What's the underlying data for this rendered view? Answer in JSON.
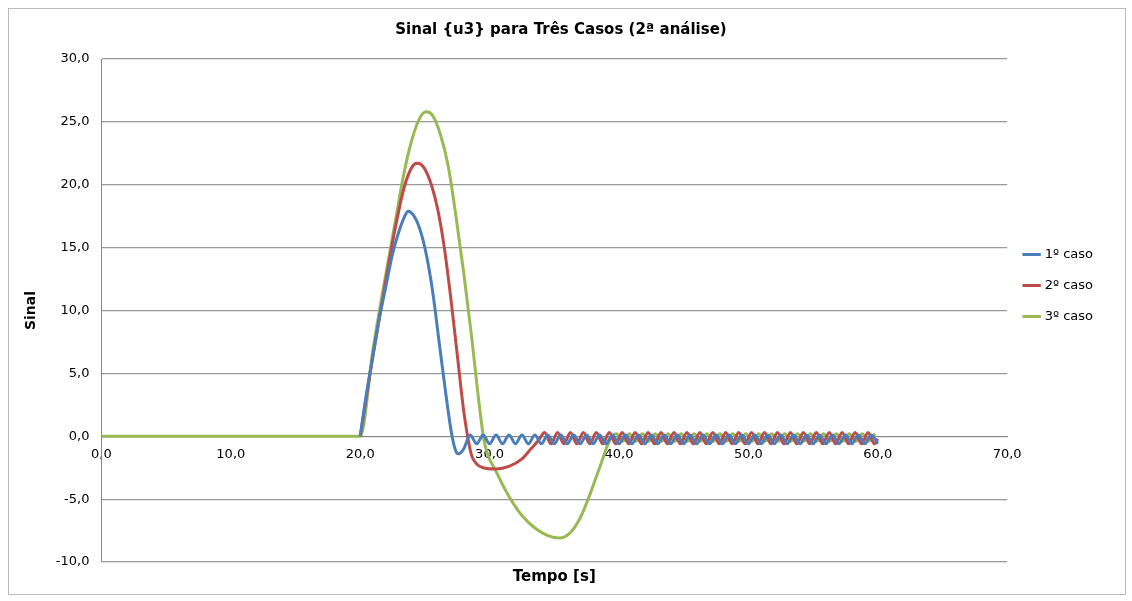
{
  "chart_data": {
    "type": "line",
    "title": "Sinal {u3} para Três Casos (2ª análise)",
    "xlabel": "Tempo [s]",
    "ylabel": "Sinal",
    "xlim": [
      0,
      70
    ],
    "xticks": [
      {
        "value": 0,
        "label": "0,0"
      },
      {
        "value": 10,
        "label": "10,0"
      },
      {
        "value": 20,
        "label": "20,0"
      },
      {
        "value": 30,
        "label": "30,0"
      },
      {
        "value": 40,
        "label": "40,0"
      },
      {
        "value": 50,
        "label": "50,0"
      },
      {
        "value": 60,
        "label": "60,0"
      },
      {
        "value": 70,
        "label": "70,0"
      }
    ],
    "ylim": [
      -10,
      30
    ],
    "yticks": [
      {
        "value": -10,
        "label": "-10,0"
      },
      {
        "value": -5,
        "label": "-5,0"
      },
      {
        "value": 0,
        "label": "0,0"
      },
      {
        "value": 5,
        "label": "5,0"
      },
      {
        "value": 10,
        "label": "10,0"
      },
      {
        "value": 15,
        "label": "15,0"
      },
      {
        "value": 20,
        "label": "20,0"
      },
      {
        "value": 25,
        "label": "25,0"
      },
      {
        "value": 30,
        "label": "30,0"
      }
    ],
    "grid": "y",
    "legend": "right",
    "marker": "none",
    "line_style": "solid",
    "series": [
      {
        "name": "1º caso",
        "color": "#4a7ebb",
        "x": [
          20,
          20.5,
          21,
          21.5,
          22,
          22.5,
          23,
          23.4,
          23.7,
          24.1,
          24.6,
          25.1,
          25.6,
          26.1,
          26.6,
          27.1,
          27.4,
          27.6,
          28,
          28.5,
          29,
          29.5,
          30,
          30.5,
          31,
          31.5,
          32,
          32.5,
          33,
          33.5,
          34,
          34.5,
          35,
          35.5,
          36,
          36.5,
          37,
          37.5,
          38,
          38.5,
          39,
          39.5,
          40,
          40.5,
          41,
          41.5,
          42,
          42.5,
          43,
          43.5,
          44,
          44.5,
          45,
          45.5,
          46,
          46.5,
          47,
          47.5,
          48,
          48.5,
          49,
          49.5,
          50,
          50.5,
          51,
          51.5,
          52,
          52.5,
          53,
          53.5,
          54,
          54.5,
          55,
          55.5,
          56,
          56.5,
          57,
          57.5,
          58,
          58.5,
          59,
          59.5,
          60
        ],
        "values": [
          0,
          3.5,
          6.5,
          9.5,
          12,
          14.5,
          16.3,
          17.4,
          17.9,
          17.6,
          16.5,
          14.5,
          11.5,
          7.5,
          3.5,
          0,
          -1.2,
          -1.4,
          -1,
          0.1,
          -0.6,
          0.1,
          -0.6,
          0.1,
          -0.6,
          0.1,
          -0.6,
          0.1,
          -0.6,
          0.1,
          -0.6,
          0.1,
          -0.6,
          0.1,
          -0.6,
          0.1,
          -0.6,
          0.1,
          -0.6,
          0.1,
          -0.6,
          0.1,
          -0.6,
          0.1,
          -0.6,
          0.1,
          -0.6,
          0.1,
          -0.6,
          0.1,
          -0.6,
          0.1,
          -0.6,
          0.1,
          -0.6,
          0.1,
          -0.6,
          0.1,
          -0.6,
          0.1,
          -0.6,
          0.1,
          -0.6,
          0.1,
          -0.6,
          0.1,
          -0.6,
          0.1,
          -0.6,
          0.1,
          -0.6,
          0.1,
          -0.6,
          0.1,
          -0.6,
          0.1,
          -0.6,
          0.1,
          -0.6,
          0.1,
          -0.6,
          0.1,
          -0.6
        ]
      },
      {
        "name": "2º caso",
        "color": "#be4b48",
        "x": [
          20,
          21,
          22,
          22.7,
          23.4,
          24,
          24.4,
          24.9,
          25.5,
          26,
          26.5,
          27,
          27.5,
          28,
          28.3,
          28.6,
          29,
          29.5,
          30.5,
          31.5,
          32.5,
          33.2,
          33.8,
          34.25,
          34.75,
          35.25,
          35.75,
          36.25,
          36.75,
          37.25,
          37.75,
          38.25,
          38.75,
          39.25,
          39.75,
          40.25,
          40.75,
          41.25,
          41.75,
          42.25,
          42.75,
          43.25,
          43.75,
          44.25,
          44.75,
          45.25,
          45.75,
          46.25,
          46.75,
          47.25,
          47.75,
          48.25,
          48.75,
          49.25,
          49.75,
          50.25,
          50.75,
          51.25,
          51.75,
          52.25,
          52.75,
          53.25,
          53.75,
          54.25,
          54.75,
          55.25,
          55.75,
          56.25,
          56.75,
          57.25,
          57.75,
          58.25,
          58.75,
          59.25,
          59.75,
          60
        ],
        "values": [
          0,
          6.5,
          12.5,
          16.5,
          19.8,
          21.4,
          21.7,
          21.4,
          20,
          18,
          15,
          11,
          6.5,
          2,
          0,
          -1.5,
          -2.2,
          -2.5,
          -2.6,
          -2.4,
          -1.8,
          -1,
          -0.3,
          0.3,
          -0.6,
          0.3,
          -0.6,
          0.3,
          -0.6,
          0.3,
          -0.6,
          0.3,
          -0.6,
          0.3,
          -0.6,
          0.3,
          -0.6,
          0.3,
          -0.6,
          0.3,
          -0.6,
          0.3,
          -0.6,
          0.3,
          -0.6,
          0.3,
          -0.6,
          0.3,
          -0.6,
          0.3,
          -0.6,
          0.3,
          -0.6,
          0.3,
          -0.6,
          0.3,
          -0.6,
          0.3,
          -0.6,
          0.3,
          -0.6,
          0.3,
          -0.6,
          0.3,
          -0.6,
          0.3,
          -0.6,
          0.3,
          -0.6,
          0.3,
          -0.6,
          0.3,
          -0.6,
          0.3,
          -0.6,
          -0.2
        ]
      },
      {
        "name": "3º caso",
        "color": "#98b954",
        "x": [
          0,
          20,
          21,
          22,
          22.7,
          23.4,
          24,
          24.6,
          25.1,
          25.6,
          26.2,
          26.8,
          27.4,
          28,
          28.6,
          29.2,
          29.6,
          30.5,
          31.5,
          32.5,
          33.5,
          34.5,
          35.4,
          36.2,
          37,
          37.8,
          38.5,
          39.3,
          39.8,
          40.3,
          40.8,
          41.3,
          41.8,
          42.3,
          42.8,
          43.3,
          43.8,
          44.3,
          44.8,
          45.3,
          45.8,
          46.3,
          46.8,
          47.3,
          47.8,
          48.3,
          48.8,
          49.3,
          49.8,
          50.3,
          50.8,
          51.3,
          51.8,
          52.3,
          52.8,
          53.3,
          53.8,
          54.3,
          54.8,
          55.3,
          55.8,
          56.3,
          56.8,
          57.3,
          57.8,
          58.3,
          58.8,
          59.3,
          59.8
        ],
        "values": [
          0,
          0,
          7,
          13,
          17,
          21,
          23.6,
          25.3,
          25.8,
          25.5,
          24,
          21.5,
          17.5,
          13,
          8,
          2.5,
          -0.5,
          -2.8,
          -4.8,
          -6.3,
          -7.3,
          -7.9,
          -8.1,
          -7.7,
          -6.5,
          -4.5,
          -2.5,
          -0.3,
          0.2,
          -0.4,
          0.2,
          -0.4,
          0.2,
          -0.4,
          0.2,
          -0.4,
          0.2,
          -0.4,
          0.2,
          -0.4,
          0.2,
          -0.4,
          0.2,
          -0.4,
          0.2,
          -0.4,
          0.2,
          -0.4,
          0.2,
          -0.4,
          0.2,
          -0.4,
          0.2,
          -0.4,
          0.2,
          -0.4,
          0.2,
          -0.4,
          0.2,
          -0.4,
          0.2,
          -0.4,
          0.2,
          -0.4,
          0.2,
          -0.4,
          0.2,
          -0.4,
          0.2
        ]
      }
    ]
  }
}
